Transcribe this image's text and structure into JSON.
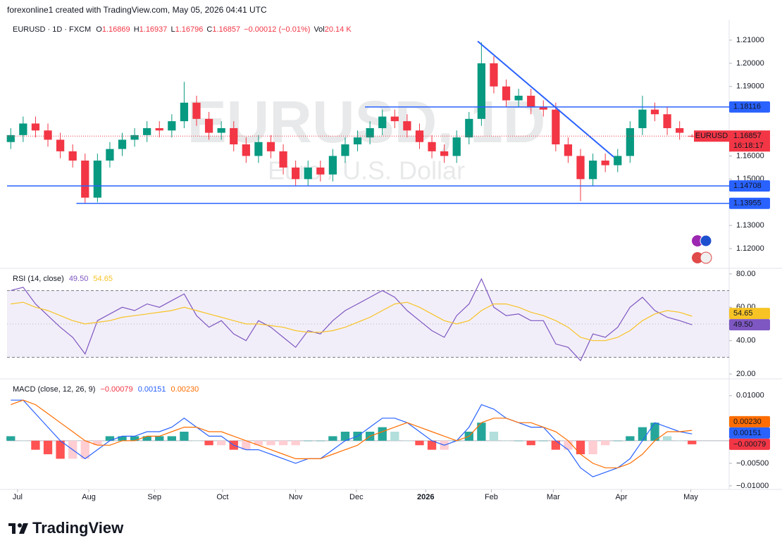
{
  "header": {
    "attribution": "forexonline1 created with TradingView.com, May 05, 2026 04:41 UTC",
    "symbol": "EURUSD · 1D · FXCM",
    "ohlc_letters": [
      "O",
      "H",
      "L",
      "C"
    ],
    "change": "−0.00012 (−0.01%)",
    "volume_label": "Vol",
    "volume": "20.14 K"
  },
  "watermark": {
    "symbol": "EURUSD, 1D",
    "description": "Euro / U.S. Dollar"
  },
  "footer": {
    "logo": "TradingView"
  },
  "chart_data": [
    {
      "type": "candlestick",
      "symbol_label": "EURUSD",
      "countdown": "16:18:17",
      "up_color": "#089981",
      "down_color": "#f23645",
      "categories": [
        null,
        null,
        null,
        null,
        null,
        null,
        null,
        null,
        null,
        null,
        null,
        null,
        null,
        null,
        null,
        null,
        null,
        null,
        null,
        null,
        null,
        null,
        null,
        null,
        null,
        null,
        null,
        null,
        null,
        null,
        null,
        null,
        null,
        null,
        null,
        null,
        null,
        null,
        null,
        null,
        null,
        null,
        null,
        null,
        null,
        null,
        null,
        null,
        null,
        null,
        null,
        null,
        null,
        null,
        null,
        null
      ],
      "open": [
        1.166,
        1.169,
        1.174,
        1.171,
        1.167,
        1.162,
        1.158,
        1.142,
        1.158,
        1.163,
        1.167,
        1.169,
        1.172,
        1.171,
        1.175,
        1.183,
        1.176,
        1.17,
        1.172,
        1.165,
        1.16,
        1.166,
        1.162,
        1.155,
        1.15,
        1.155,
        1.152,
        1.16,
        1.165,
        1.168,
        1.172,
        1.177,
        1.175,
        1.171,
        1.166,
        1.162,
        1.16,
        1.168,
        1.176,
        1.2,
        1.19,
        1.184,
        1.186,
        1.181,
        1.18,
        1.165,
        1.16,
        1.15,
        1.158,
        1.156,
        1.16,
        1.172,
        1.18,
        1.178,
        1.172,
        1.16869
      ],
      "high": [
        1.172,
        1.177,
        1.177,
        1.174,
        1.17,
        1.165,
        1.161,
        1.161,
        1.166,
        1.17,
        1.172,
        1.175,
        1.175,
        1.178,
        1.192,
        1.186,
        1.179,
        1.175,
        1.175,
        1.168,
        1.169,
        1.169,
        1.165,
        1.158,
        1.158,
        1.158,
        1.163,
        1.168,
        1.171,
        1.175,
        1.18,
        1.18,
        1.178,
        1.174,
        1.169,
        1.165,
        1.171,
        1.179,
        1.209,
        1.203,
        1.193,
        1.189,
        1.189,
        1.184,
        1.183,
        1.168,
        1.163,
        1.161,
        1.161,
        1.163,
        1.175,
        1.186,
        1.183,
        1.181,
        1.175,
        1.16937
      ],
      "low": [
        1.163,
        1.166,
        1.168,
        1.164,
        1.159,
        1.155,
        1.1395,
        1.14,
        1.155,
        1.16,
        1.164,
        1.166,
        1.168,
        1.168,
        1.172,
        1.173,
        1.167,
        1.167,
        1.162,
        1.157,
        1.157,
        1.159,
        1.152,
        1.147,
        1.147,
        1.149,
        1.149,
        1.157,
        1.162,
        1.165,
        1.169,
        1.172,
        1.168,
        1.163,
        1.159,
        1.157,
        1.157,
        1.165,
        1.173,
        1.187,
        1.181,
        1.181,
        1.178,
        1.177,
        1.162,
        1.157,
        1.1405,
        1.147,
        1.153,
        1.153,
        1.157,
        1.169,
        1.175,
        1.169,
        1.167,
        1.16796
      ],
      "close": [
        1.169,
        1.174,
        1.171,
        1.167,
        1.162,
        1.158,
        1.142,
        1.158,
        1.163,
        1.167,
        1.169,
        1.172,
        1.171,
        1.175,
        1.183,
        1.176,
        1.17,
        1.172,
        1.165,
        1.16,
        1.166,
        1.162,
        1.155,
        1.15,
        1.155,
        1.152,
        1.16,
        1.165,
        1.168,
        1.172,
        1.177,
        1.175,
        1.171,
        1.166,
        1.162,
        1.16,
        1.168,
        1.176,
        1.2,
        1.19,
        1.184,
        1.186,
        1.181,
        1.18,
        1.165,
        1.16,
        1.15,
        1.158,
        1.156,
        1.16,
        1.172,
        1.18,
        1.178,
        1.172,
        1.17,
        1.16857
      ],
      "hlines": [
        {
          "value": 1.18116,
          "from": 28.6,
          "color": "#2962ff"
        },
        {
          "value": 1.14708,
          "from": -0.3,
          "color": "#2962ff"
        },
        {
          "value": 1.13955,
          "from": 5.3,
          "color": "#2962ff"
        }
      ],
      "trendlines": [
        {
          "x": [
            37.7,
            48.7
          ],
          "y": [
            1.2095,
            1.1595
          ],
          "color": "#2962ff"
        }
      ],
      "xlim": [
        -0.3,
        58
      ],
      "xticks": [
        {
          "value": 0.55,
          "label": "Jul"
        },
        {
          "value": 6.3,
          "label": "Aug"
        },
        {
          "value": 11.6,
          "label": "Sep"
        },
        {
          "value": 17.1,
          "label": "Oct"
        },
        {
          "value": 23.0,
          "label": "Nov"
        },
        {
          "value": 27.9,
          "label": "Dec"
        },
        {
          "value": 33.5,
          "label": "2026"
        },
        {
          "value": 38.8,
          "label": "Feb"
        },
        {
          "value": 43.8,
          "label": "Mar"
        },
        {
          "value": 49.3,
          "label": "Apr"
        },
        {
          "value": 54.9,
          "label": "May"
        }
      ],
      "ylim": [
        1.1118,
        1.2182
      ],
      "yticks": [
        {
          "value": 1.21,
          "label": "1.21000"
        },
        {
          "value": 1.2,
          "label": "1.20000"
        },
        {
          "value": 1.19,
          "label": "1.19000"
        },
        {
          "value": 1.16,
          "label": "1.16000"
        },
        {
          "value": 1.15,
          "label": "1.15000"
        },
        {
          "value": 1.13,
          "label": "1.13000"
        },
        {
          "value": 1.12,
          "label": "1.12000"
        }
      ]
    },
    {
      "type": "indicator",
      "title": "RSI (14, close)",
      "band": [
        30,
        70
      ],
      "midline": 50,
      "ylim": [
        17.5,
        82.5
      ],
      "yticks": [
        {
          "value": 80,
          "label": "80.00"
        },
        {
          "value": 60,
          "label": "60.00"
        },
        {
          "value": 40,
          "label": "40.00"
        },
        {
          "value": 20,
          "label": "20.00"
        }
      ],
      "series": [
        {
          "kind": "line",
          "color": "#7e57c2",
          "last_label": "49.50",
          "values": [
            70,
            72,
            62,
            55,
            48,
            42,
            32,
            52,
            56,
            60,
            58,
            62,
            60,
            64,
            68,
            55,
            48,
            52,
            44,
            40,
            52,
            48,
            42,
            36,
            46,
            44,
            52,
            58,
            62,
            66,
            70,
            66,
            58,
            52,
            46,
            42,
            55,
            62,
            77,
            60,
            55,
            56,
            52,
            52,
            38,
            36,
            28,
            44,
            42,
            48,
            60,
            66,
            58,
            54,
            52,
            49.5
          ]
        },
        {
          "kind": "line",
          "color": "#f7c325",
          "last_label": "54.65",
          "values": [
            62,
            63,
            60,
            58,
            55,
            52,
            50,
            51,
            52,
            54,
            55,
            56,
            57,
            58,
            60,
            58,
            56,
            54,
            52,
            50,
            50,
            49,
            48,
            46,
            45,
            45,
            46,
            48,
            51,
            54,
            58,
            62,
            63,
            60,
            56,
            52,
            50,
            52,
            58,
            62,
            62,
            60,
            57,
            55,
            52,
            48,
            42,
            40,
            40,
            42,
            46,
            52,
            56,
            58,
            57,
            54.65
          ]
        }
      ]
    },
    {
      "type": "indicator",
      "title": "MACD (close, 12, 26, 9)",
      "midline": 0,
      "ylim": [
        -0.0108,
        0.0134
      ],
      "yticks": [
        {
          "value": 0.01,
          "label": "0.01000"
        },
        {
          "value": -0.005,
          "label": "−0.00500"
        },
        {
          "value": -0.01,
          "label": "−0.01000"
        }
      ],
      "series": [
        {
          "kind": "histogram",
          "color": "#f23645",
          "last_label": "−0.00079",
          "values": [
            0.001,
            0,
            -0.002,
            -0.003,
            -0.004,
            -0.004,
            -0.004,
            -0.001,
            0.001,
            0.001,
            0.001,
            0.001,
            0.001,
            0.001,
            0.002,
            0,
            -0.001,
            -0.001,
            -0.002,
            -0.002,
            -0.001,
            -0.001,
            -0.001,
            -0.001,
            0,
            0,
            0.001,
            0.002,
            0.002,
            0.002,
            0.003,
            0.002,
            0,
            -0.001,
            -0.002,
            -0.002,
            0,
            0.002,
            0.004,
            0.002,
            0,
            0,
            -0.001,
            0,
            -0.002,
            -0.002,
            -0.003,
            -0.003,
            -0.001,
            0,
            0.001,
            0.003,
            0.004,
            0.001,
            0,
            -0.00079
          ]
        },
        {
          "kind": "line",
          "color": "#2962ff",
          "last_label": "0.00151",
          "values": [
            0.009,
            0.009,
            0.006,
            0.003,
            0.0,
            -0.002,
            -0.004,
            -0.002,
            0.0,
            0.001,
            0.001,
            0.002,
            0.002,
            0.003,
            0.005,
            0.003,
            0.001,
            0.001,
            -0.001,
            -0.002,
            -0.002,
            -0.003,
            -0.004,
            -0.005,
            -0.004,
            -0.004,
            -0.002,
            0.0,
            0.001,
            0.003,
            0.005,
            0.005,
            0.004,
            0.002,
            0.0,
            -0.001,
            0.0,
            0.003,
            0.008,
            0.007,
            0.005,
            0.004,
            0.003,
            0.003,
            0.0,
            -0.002,
            -0.006,
            -0.008,
            -0.007,
            -0.006,
            -0.004,
            0.0,
            0.004,
            0.003,
            0.002,
            0.00151
          ]
        },
        {
          "kind": "line",
          "color": "#ff6d00",
          "last_label": "0.00230",
          "values": [
            0.008,
            0.009,
            0.008,
            0.006,
            0.004,
            0.002,
            0.0,
            -0.001,
            -0.001,
            0.0,
            0.0,
            0.001,
            0.001,
            0.002,
            0.003,
            0.003,
            0.002,
            0.002,
            0.001,
            0.0,
            -0.001,
            -0.002,
            -0.003,
            -0.004,
            -0.004,
            -0.004,
            -0.003,
            -0.002,
            -0.001,
            0.001,
            0.002,
            0.003,
            0.004,
            0.003,
            0.002,
            0.001,
            0.0,
            0.001,
            0.004,
            0.005,
            0.005,
            0.004,
            0.004,
            0.003,
            0.002,
            0.0,
            -0.003,
            -0.005,
            -0.006,
            -0.006,
            -0.005,
            -0.003,
            0.0,
            0.002,
            0.002,
            0.0023
          ]
        }
      ]
    }
  ]
}
